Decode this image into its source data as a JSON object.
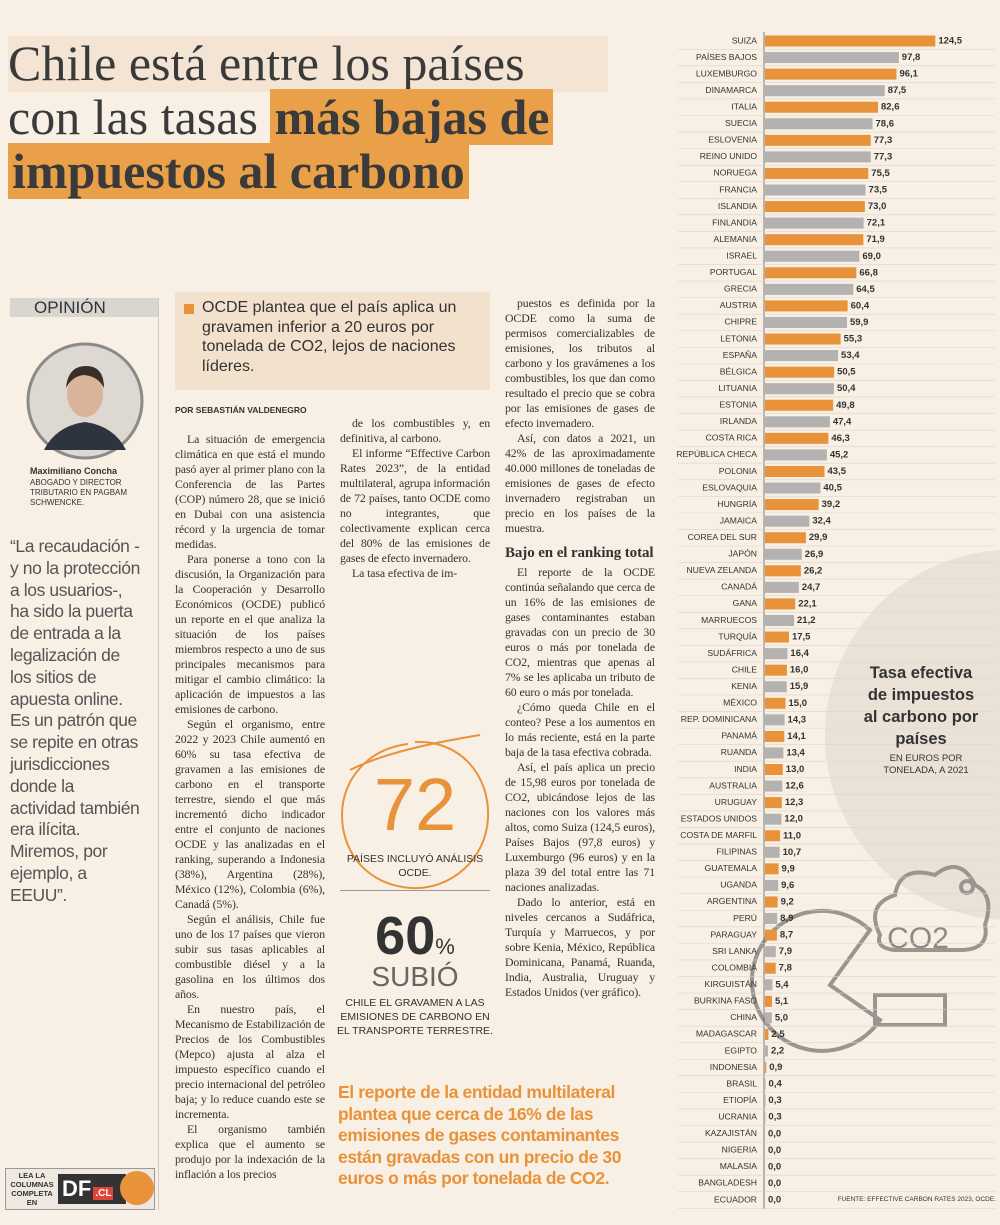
{
  "headline": {
    "line1": "Chile está entre los países",
    "line2": "con las tasas",
    "highlight1": "más bajas de",
    "highlight2": "impuestos al carbono"
  },
  "opinion": {
    "section": "OPINIÓN",
    "author": "Maximiliano Concha",
    "author_title": "ABOGADO Y DIRECTOR TRIBUTARIO EN PAGBAM SCHWENCKE.",
    "quote": "“La recaudación -y no la protección a los usuarios-, ha sido la puerta de entrada a la legalización de los sitios de apuesta online. Es un patrón que se repite en otras jurisdicciones donde la actividad también era ilícita. Miremos, por ejemplo, a EEUU”."
  },
  "lede": "OCDE plantea que el país aplica un gravamen inferior a 20 euros por tonelada de CO2, lejos de naciones líderes.",
  "byline": "POR SEBASTIÁN VALDENEGRO",
  "article": {
    "col1": [
      "La situación de emergencia climática en que está el mundo pasó ayer al primer plano con la Conferencia de las Partes (COP) número 28, que se inició en Dubai con una asistencia récord y la urgencia de tomar medidas.",
      "Para ponerse a tono con la discusión, la Organización para la Cooperación y Desarrollo Económicos (OCDE) publicó un reporte en el que analiza la situación de los países miembros respecto a uno de sus principales mecanismos para mitigar el cambio climático: la aplicación de impuestos a las emisiones de carbono.",
      "Según el organismo, entre 2022 y 2023 Chile aumentó en 60% su tasa efectiva de gravamen a las emisiones de carbono en el transporte terrestre, siendo el que más incrementó dicho indicador entre el conjunto de naciones OCDE y las analizadas en el ranking, superando a Indonesia (38%), Argentina (28%), México (12%), Colombia (6%), Canadá (5%).",
      "Según el análisis, Chile fue uno de los 17 países que vieron subir sus tasas aplicables al combustible diésel y a la gasolina en los últimos dos años.",
      "En nuestro país, el Mecanismo de Estabilización de Precios de los Combustibles (Mepco) ajusta al alza el impuesto específico cuando el precio internacional del petróleo baja; y lo reduce cuando este se incrementa.",
      "El organismo también explica que el aumento se produjo por la indexación de la inflación a los precios"
    ],
    "col2": [
      "de los combustibles y, en definitiva, al carbono.",
      "El informe “Effective Carbon Rates 2023”, de la entidad multilateral, agrupa información de 72 países, tanto OCDE como no integrantes, que colectivamente explican cerca del 80% de las emisiones de gases de efecto invernadero.",
      "La tasa efectiva de im-"
    ],
    "col3a": [
      "puestos es definida por la OCDE como la suma de permisos comercializables de emisiones, los tributos al carbono y los gravámenes a los combustibles, los que dan como resultado el precio que se cobra por las emisiones de gases de efecto invernadero.",
      "Así, con datos a 2021, un 42% de las aproximadamente 40.000 millones de toneladas de emisiones de gases de efecto invernadero registraban un precio en los países de la muestra."
    ],
    "subhead": "Bajo en el ranking total",
    "col3b": [
      "El reporte de la OCDE continúa señalando que cerca de un 16% de las emisiones de gases contaminantes estaban gravadas con un precio de 30 euros o más por tonelada de CO2, mientras que apenas al 7% se les aplicaba un tributo de 60 euro o más por tonelada.",
      "¿Cómo queda Chile en el conteo? Pese a los aumentos en lo más reciente, está en la parte baja de la tasa efectiva cobrada.",
      "Así, el país aplica un precio de 15,98 euros por tonelada de CO2, ubicándose lejos de las naciones con los valores más altos, como Suiza (124,5 euros), Países Bajos (97,8 euros) y Luxemburgo (96 euros) y en la plaza 39 del total entre las 71 naciones analizadas.",
      "Dado lo anterior, está en niveles cercanos a Sudáfrica, Turquía y Marruecos, y por sobre Kenia, México, República Dominicana, Panamá, Ruanda, India, Australia, Uruguay y Estados Unidos (ver gráfico)."
    ]
  },
  "callouts": {
    "count": "72",
    "count_text": "PAÍSES INCLUYÓ ANÁLISIS OCDE.",
    "pct": "60",
    "pct_unit": "%",
    "pct_verb": "SUBIÓ",
    "pct_text": "CHILE EL GRAVAMEN A LAS EMISIONES DE CARBONO EN EL TRANSPORTE TERRESTRE."
  },
  "pull_quote": "El reporte de la entidad multilateral plantea que cerca de 16% de las emisiones de gases contaminantes están gravadas con un precio de 30 euros o más por tonelada de CO2.",
  "promo": {
    "text": "LEA LA COLUMNAS COMPLETA EN",
    "logo": "DF",
    "logo_suffix": ".CL"
  },
  "illustration": {
    "label": "CO2"
  },
  "chart_data": {
    "type": "bar",
    "orientation": "horizontal",
    "title": "Tasa efectiva de impuestos al carbono por países",
    "subtitle": "EN EUROS POR TONELADA, A 2021",
    "source": "FUENTE: EFFECTIVE CARBON RATES 2023, OCDE.",
    "categories": [
      "SUIZA",
      "PAÍSES BAJOS",
      "LUXEMBURGO",
      "DINAMARCA",
      "ITALIA",
      "SUECIA",
      "ESLOVENIA",
      "REINO UNIDO",
      "NORUEGA",
      "FRANCIA",
      "ISLANDIA",
      "FINLANDIA",
      "ALEMANIA",
      "ISRAEL",
      "PORTUGAL",
      "GRECIA",
      "AUSTRIA",
      "CHIPRE",
      "LETONIA",
      "ESPAÑA",
      "BÉLGICA",
      "LITUANIA",
      "ESTONIA",
      "IRLANDA",
      "COSTA RICA",
      "REPÚBLICA CHECA",
      "POLONIA",
      "ESLOVAQUIA",
      "HUNGRÍA",
      "JAMAICA",
      "COREA DEL SUR",
      "JAPÓN",
      "NUEVA ZELANDA",
      "CANADÁ",
      "GANA",
      "MARRUECOS",
      "TURQUÍA",
      "SUDÁFRICA",
      "CHILE",
      "KENIA",
      "MÉXICO",
      "REP. DOMINICANA",
      "PANAMÁ",
      "RUANDA",
      "INDIA",
      "AUSTRALIA",
      "URUGUAY",
      "ESTADOS UNIDOS",
      "COSTA DE MARFIL",
      "FILIPINAS",
      "GUATEMALA",
      "UGANDA",
      "ARGENTINA",
      "PERÚ",
      "PARAGUAY",
      "SRI LANKA",
      "COLOMBIA",
      "KIRGUISTÁN",
      "BURKINA FASO",
      "CHINA",
      "MADAGASCAR",
      "EGIPTO",
      "INDONESIA",
      "BRASIL",
      "ETIOPÍA",
      "UCRANIA",
      "KAZAJISTÁN",
      "NIGERIA",
      "MALASIA",
      "BANGLADESH",
      "ECUADOR"
    ],
    "values": [
      124.5,
      97.8,
      96.1,
      87.5,
      82.6,
      78.6,
      77.3,
      77.3,
      75.5,
      73.5,
      73,
      72.1,
      71.9,
      69,
      66.8,
      64.5,
      60.4,
      59.9,
      55.3,
      53.4,
      50.5,
      50.4,
      49.8,
      47.4,
      46.3,
      45.2,
      43.5,
      40.5,
      39.2,
      32.4,
      29.9,
      26.9,
      26.2,
      24.7,
      22.1,
      21.2,
      17.5,
      16.4,
      16,
      15.9,
      15,
      14.3,
      14.1,
      13.4,
      13,
      12.6,
      12.3,
      12,
      11,
      10.7,
      9.9,
      9.6,
      9.2,
      8.9,
      8.7,
      7.9,
      7.8,
      5.4,
      5.1,
      5,
      2.5,
      2.2,
      0.9,
      0.4,
      0.3,
      0.3,
      0,
      0,
      0,
      0,
      0
    ],
    "value_labels": [
      "124,5",
      "97,8",
      "96,1",
      "87,5",
      "82,6",
      "78,6",
      "77,3",
      "77,3",
      "75,5",
      "73,5",
      "73,0",
      "72,1",
      "71,9",
      "69,0",
      "66,8",
      "64,5",
      "60,4",
      "59,9",
      "55,3",
      "53,4",
      "50,5",
      "50,4",
      "49,8",
      "47,4",
      "46,3",
      "45,2",
      "43,5",
      "40,5",
      "39,2",
      "32,4",
      "29,9",
      "26,9",
      "26,2",
      "24,7",
      "22,1",
      "21,2",
      "17,5",
      "16,4",
      "16,0",
      "15,9",
      "15,0",
      "14,3",
      "14,1",
      "13,4",
      "13,0",
      "12,6",
      "12,3",
      "12,0",
      "11,0",
      "10,7",
      "9,9",
      "9,6",
      "9,2",
      "8,9",
      "8,7",
      "7,9",
      "7,8",
      "5,4",
      "5,1",
      "5,0",
      "2,5",
      "2,2",
      "0,9",
      "0,4",
      "0,3",
      "0,3",
      "0,0",
      "0,0",
      "0,0",
      "0,0",
      "0,0"
    ],
    "colors": [
      "#e8923a",
      "#b4b2b0"
    ],
    "xlim": [
      0,
      125
    ]
  }
}
